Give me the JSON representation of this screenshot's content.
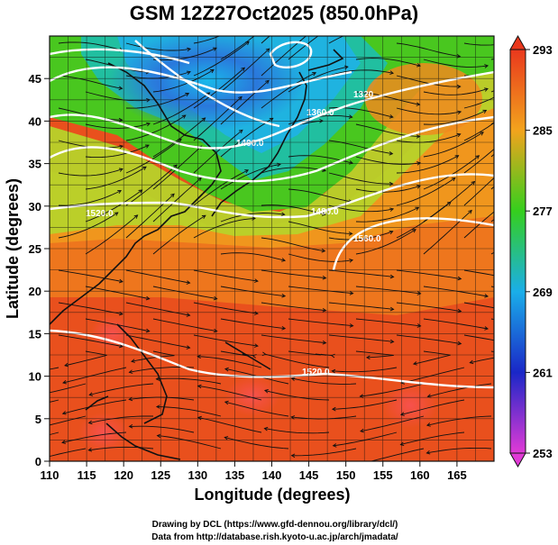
{
  "chart_data": {
    "type": "heatmap",
    "title": "GSM 12Z27Oct2025 (850.0hPa)",
    "xlabel": "Longitude (degrees)",
    "ylabel": "Latitude  (degrees)",
    "xlim": [
      110,
      170
    ],
    "ylim": [
      0,
      50
    ],
    "xticks": [
      "110",
      "115",
      "120",
      "125",
      "130",
      "135",
      "140",
      "145",
      "150",
      "155",
      "160",
      "165"
    ],
    "yticks": [
      "0",
      "5",
      "10",
      "15",
      "20",
      "25",
      "30",
      "35",
      "40",
      "45"
    ],
    "colorbar": {
      "variable": "temperature",
      "range": [
        253,
        293
      ],
      "ticks": [
        "253",
        "261",
        "269",
        "277",
        "285",
        "293"
      ],
      "colors": [
        "#e13ad6",
        "#1a27c7",
        "#1aaee9",
        "#35cf1d",
        "#f2a31d",
        "#e9381d"
      ]
    },
    "contours": {
      "variable": "geopotential height",
      "labels": [
        "1320",
        "1360.0",
        "1400.0",
        "1480.0",
        "1520.0",
        "1560.0",
        "1520.0"
      ]
    },
    "overlay": "wind streamlines"
  },
  "credits": {
    "drawing": "Drawing by DCL (https://www.gfd-dennou.org/library/dcl/)",
    "data": "Data from http://database.rish.kyoto-u.ac.jp/arch/jmadata/"
  }
}
